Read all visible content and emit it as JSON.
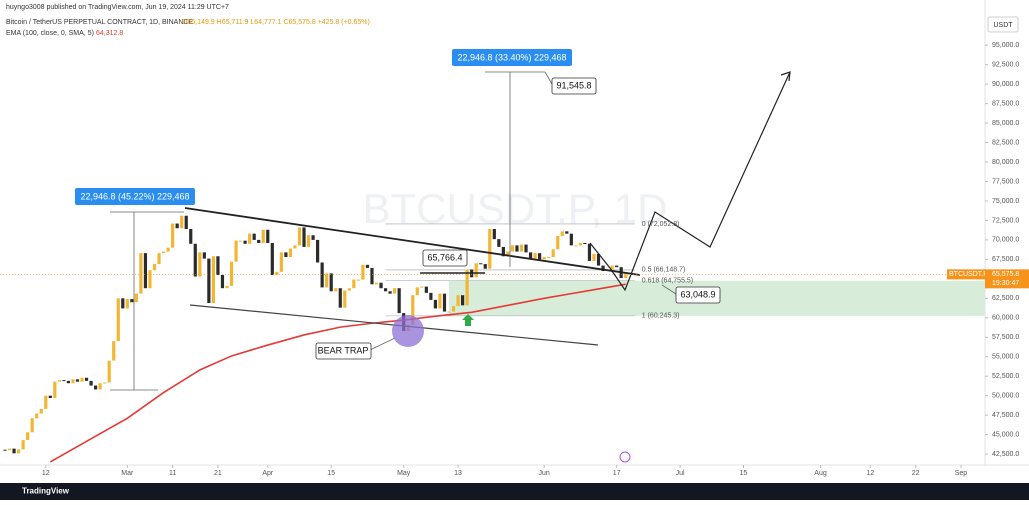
{
  "header": {
    "publisher": "huyngo3008 published on TradingView.com, Jun 19, 2024 11:29 UTC+7",
    "symbol": "Bitcoin / TetherUS PERPETUAL CONTRACT, 1D, BINANCE",
    "ohlc": "O65,149.9 H65,711.9 L64,777.1 C65,575.8 +425.8 (+0.65%)",
    "ema_label": "EMA (100, close, 0, SMA, 5)",
    "ema_value": "64,312.8",
    "currency": "USDT",
    "watermark": "BTCUSDT.P, 1D",
    "footer": "TradingView"
  },
  "chart_data": {
    "type": "candlestick",
    "title": "BTCUSDT.P",
    "up_color": "#f2b632",
    "down_color": "#2b2b2b",
    "closes": [
      43000,
      43200,
      42600,
      43100,
      44300,
      45300,
      47100,
      47700,
      48300,
      50000,
      49700,
      51800,
      52000,
      51900,
      51600,
      52100,
      51800,
      52300,
      51900,
      51300,
      50800,
      51600,
      51700,
      54500,
      57000,
      62500,
      61200,
      62400,
      62000,
      63100,
      68300,
      63800,
      66100,
      66900,
      68300,
      68500,
      69000,
      72100,
      71500,
      73100,
      71400,
      69500,
      65300,
      68400,
      67600,
      61900,
      67900,
      65500,
      63800,
      64100,
      67200,
      69900,
      69900,
      69500,
      70800,
      70000,
      69600,
      71300,
      69600,
      65500,
      65900,
      68400,
      67800,
      68900,
      69300,
      71600,
      69100,
      70600,
      70000,
      67100,
      63900,
      65700,
      63400,
      63800,
      61300,
      63500,
      63800,
      64900,
      64900,
      66800,
      66400,
      64300,
      64500,
      63800,
      63400,
      63100,
      63800,
      60600,
      58300,
      59100,
      62900,
      63900,
      64000,
      63200,
      62300,
      61200,
      63100,
      60800,
      60800,
      61500,
      62900,
      61600,
      66200,
      65200,
      67000,
      66900,
      66300,
      71400,
      70100,
      69100,
      67900,
      68500,
      69300,
      68500,
      69400,
      68400,
      67600,
      68300,
      67500,
      67800,
      67800,
      68800,
      70500,
      71100,
      70800,
      69300,
      69300,
      69600,
      69500,
      67300,
      68200,
      66700,
      66000,
      66200,
      66700,
      66500,
      65100,
      65575.8
    ],
    "ema": {
      "name": "EMA",
      "color": "#e53935",
      "x": [
        10,
        20,
        27,
        35,
        43,
        50,
        58,
        66,
        74,
        81,
        88,
        95,
        103,
        111,
        119,
        125,
        131,
        137
      ],
      "values": [
        41500,
        44800,
        47100,
        50400,
        53300,
        55100,
        56500,
        57800,
        58800,
        59300,
        59700,
        60200,
        60700,
        61600,
        62500,
        63100,
        63700,
        64312.8
      ]
    },
    "last_price": {
      "value": 65575.8,
      "label": "65,575.8",
      "countdown": "19:30:47"
    },
    "fib_levels": [
      {
        "value": 72052.8,
        "label": "0 (72,052.8)"
      },
      {
        "value": 66148.7,
        "label": "0.5 (66,148.7)"
      },
      {
        "value": 64755.5,
        "label": "0.618 (64,755.5)"
      },
      {
        "value": 60245.3,
        "label": "1 (60,245.3)"
      }
    ],
    "annotations": [
      "22,946.8 (45.22%) 229,468",
      "22,946.8 (33.40%) 229,468",
      "91,545.8",
      "65,766.4",
      "63,048.9",
      "BEAR TRAP"
    ],
    "xlim": [
      -1.1,
      216.3
    ],
    "ylim": [
      41100,
      100800
    ],
    "xticks": [
      {
        "value": 9,
        "label": "12"
      },
      {
        "value": 27,
        "label": "Mar"
      },
      {
        "value": 37,
        "label": "11"
      },
      {
        "value": 47,
        "label": "21"
      },
      {
        "value": 58,
        "label": "Apr"
      },
      {
        "value": 72,
        "label": "15"
      },
      {
        "value": 88,
        "label": "May"
      },
      {
        "value": 100,
        "label": "13"
      },
      {
        "value": 119,
        "label": "Jun"
      },
      {
        "value": 135,
        "label": "17"
      },
      {
        "value": 149,
        "label": "Jul"
      },
      {
        "value": 163,
        "label": "15"
      },
      {
        "value": 180,
        "label": "Aug"
      },
      {
        "value": 191,
        "label": "12"
      },
      {
        "value": 201,
        "label": "22"
      },
      {
        "value": 211,
        "label": "Sep"
      }
    ],
    "yticks": [
      {
        "value": 42500,
        "label": "42,500.0"
      },
      {
        "value": 45000,
        "label": "45,000.0"
      },
      {
        "value": 47500,
        "label": "47,500.0"
      },
      {
        "value": 50000,
        "label": "50,000.0"
      },
      {
        "value": 52500,
        "label": "52,500.0"
      },
      {
        "value": 55000,
        "label": "55,000.0"
      },
      {
        "value": 57500,
        "label": "57,500.0"
      },
      {
        "value": 60000,
        "label": "60,000.0"
      },
      {
        "value": 62500,
        "label": "62,500.0"
      },
      {
        "value": 65000,
        "label": "65,000.0"
      },
      {
        "value": 67500,
        "label": "67,500.0"
      },
      {
        "value": 70000,
        "label": "70,000.0"
      },
      {
        "value": 72500,
        "label": "72,500.0"
      },
      {
        "value": 75000,
        "label": "75,000.0"
      },
      {
        "value": 77500,
        "label": "77,500.0"
      },
      {
        "value": 80000,
        "label": "80,000.0"
      },
      {
        "value": 82500,
        "label": "82,500.0"
      },
      {
        "value": 85000,
        "label": "85,000.0"
      },
      {
        "value": 87500,
        "label": "87,500.0"
      },
      {
        "value": 90000,
        "label": "90,000.0"
      },
      {
        "value": 92500,
        "label": "92,500.0"
      },
      {
        "value": 95000,
        "label": "95,000.0"
      }
    ],
    "grid": false
  }
}
